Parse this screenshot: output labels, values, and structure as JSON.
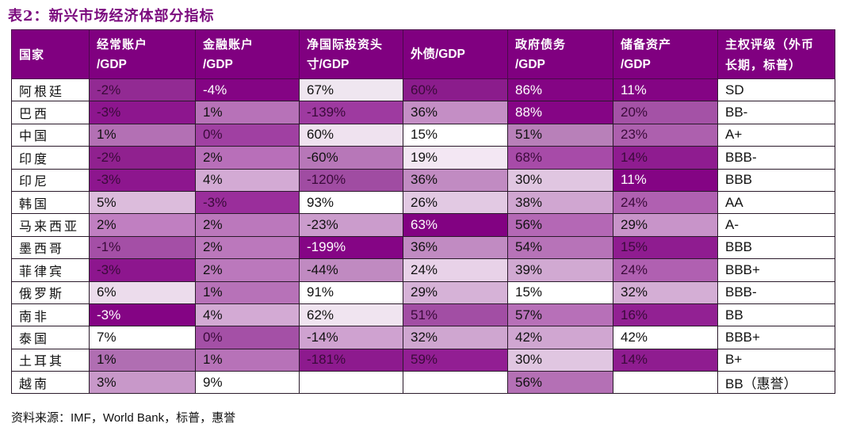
{
  "title": "表2：新兴市场经济体部分指标",
  "table": {
    "columns": [
      {
        "line1": "国家",
        "line2": ""
      },
      {
        "line1": "经常账户",
        "line2": "/GDP"
      },
      {
        "line1": "金融账户",
        "line2": "/GDP"
      },
      {
        "line1": "净国际投资头",
        "line2": "寸/GDP"
      },
      {
        "line1": "外债/GDP",
        "line2": ""
      },
      {
        "line1": "政府债务",
        "line2": "/GDP"
      },
      {
        "line1": "储备资产",
        "line2": "/GDP"
      },
      {
        "line1": "主权评级（外币",
        "line2": "长期，标普）"
      }
    ],
    "rows": [
      {
        "country": "阿根廷",
        "values": [
          "-2%",
          "-4%",
          "67%",
          "60%",
          "86%",
          "11%",
          "SD"
        ],
        "colors": [
          "#922a93",
          "#840484",
          "#efe6f0",
          "#8b1c8c",
          "#840484",
          "#840484",
          "#ffffff"
        ],
        "text": [
          "mid",
          "light",
          "dark",
          "mid",
          "light",
          "light",
          "dark"
        ]
      },
      {
        "country": "巴西",
        "values": [
          "-3%",
          "1%",
          "-139%",
          "36%",
          "88%",
          "20%",
          "BB-"
        ],
        "colors": [
          "#8d168e",
          "#b772b8",
          "#9e3aa0",
          "#c48ec5",
          "#850585",
          "#a452a6",
          "#ffffff"
        ],
        "text": [
          "mid",
          "dark",
          "mid",
          "dark",
          "light",
          "mid",
          "dark"
        ]
      },
      {
        "country": "中国",
        "values": [
          "1%",
          "0%",
          "60%",
          "15%",
          "51%",
          "23%",
          "A+"
        ],
        "colors": [
          "#b370b4",
          "#a040a2",
          "#efe2ef",
          "#ffffff",
          "#b880b9",
          "#ad60ae",
          "#ffffff"
        ],
        "text": [
          "dark",
          "mid",
          "dark",
          "dark",
          "dark",
          "mid",
          "dark"
        ]
      },
      {
        "country": "印度",
        "values": [
          "-2%",
          "2%",
          "-60%",
          "19%",
          "68%",
          "14%",
          "BBB-"
        ],
        "colors": [
          "#90218f",
          "#b86fb9",
          "#b777b8",
          "#f3e7f3",
          "#a74ba8",
          "#8f1c90",
          "#ffffff"
        ],
        "text": [
          "mid",
          "dark",
          "dark",
          "dark",
          "mid",
          "mid",
          "dark"
        ]
      },
      {
        "country": "印尼",
        "values": [
          "-3%",
          "4%",
          "-120%",
          "36%",
          "30%",
          "11%",
          "BBB"
        ],
        "colors": [
          "#8d168e",
          "#d3aad4",
          "#a04ca2",
          "#c18bc2",
          "#e0c6e1",
          "#840484",
          "#ffffff"
        ],
        "text": [
          "mid",
          "dark",
          "mid",
          "dark",
          "dark",
          "light",
          "dark"
        ]
      },
      {
        "country": "韩国",
        "values": [
          "5%",
          "-3%",
          "93%",
          "26%",
          "38%",
          "24%",
          "AA"
        ],
        "colors": [
          "#dcbcdc",
          "#9a2e9b",
          "#ffffff",
          "#e2c9e3",
          "#d0a6d1",
          "#b060b1",
          "#ffffff"
        ],
        "text": [
          "dark",
          "mid",
          "dark",
          "dark",
          "dark",
          "mid",
          "dark"
        ]
      },
      {
        "country": "马来西亚",
        "values": [
          "2%",
          "2%",
          "-23%",
          "63%",
          "56%",
          "29%",
          "A-"
        ],
        "colors": [
          "#c07fc1",
          "#bb78bc",
          "#cb9ccc",
          "#820282",
          "#b468b5",
          "#c894c9",
          "#ffffff"
        ],
        "text": [
          "dark",
          "dark",
          "dark",
          "light",
          "dark",
          "dark",
          "dark"
        ]
      },
      {
        "country": "墨西哥",
        "values": [
          "-1%",
          "2%",
          "-199%",
          "36%",
          "54%",
          "15%",
          "BBB"
        ],
        "colors": [
          "#a44fa6",
          "#bb78bc",
          "#850585",
          "#c18bc2",
          "#b773b8",
          "#8f1c90",
          "#ffffff"
        ],
        "text": [
          "mid",
          "dark",
          "light",
          "dark",
          "dark",
          "mid",
          "dark"
        ]
      },
      {
        "country": "菲律宾",
        "values": [
          "-3%",
          "2%",
          "-44%",
          "24%",
          "39%",
          "24%",
          "BBB+"
        ],
        "colors": [
          "#8d168e",
          "#bb78bc",
          "#c08ac1",
          "#e8d2e8",
          "#d1a9d2",
          "#b060b1",
          "#ffffff"
        ],
        "text": [
          "mid",
          "dark",
          "dark",
          "dark",
          "dark",
          "mid",
          "dark"
        ]
      },
      {
        "country": "俄罗斯",
        "values": [
          "6%",
          "1%",
          "91%",
          "29%",
          "15%",
          "32%",
          "BBB-"
        ],
        "colors": [
          "#ecdcec",
          "#b772b8",
          "#ffffff",
          "#d6b2d7",
          "#ffffff",
          "#d4aed5",
          "#ffffff"
        ],
        "text": [
          "dark",
          "dark",
          "dark",
          "dark",
          "dark",
          "dark",
          "dark"
        ]
      },
      {
        "country": "南非",
        "values": [
          "-3%",
          "4%",
          "62%",
          "51%",
          "57%",
          "16%",
          "BB"
        ],
        "colors": [
          "#840484",
          "#d3aad4",
          "#f0e4f0",
          "#a24ea4",
          "#b770b8",
          "#922193",
          "#ffffff"
        ],
        "text": [
          "light",
          "dark",
          "dark",
          "mid",
          "dark",
          "mid",
          "dark"
        ]
      },
      {
        "country": "泰国",
        "values": [
          "7%",
          "0%",
          "-14%",
          "32%",
          "42%",
          "42%",
          "BBB+"
        ],
        "colors": [
          "#ffffff",
          "#a450a6",
          "#cfa2d0",
          "#cfa6d0",
          "#d0a6d1",
          "#ffffff",
          "#ffffff"
        ],
        "text": [
          "dark",
          "mid",
          "dark",
          "dark",
          "dark",
          "dark",
          "dark"
        ]
      },
      {
        "country": "土耳其",
        "values": [
          "1%",
          "1%",
          "-181%",
          "59%",
          "30%",
          "14%",
          "B+"
        ],
        "colors": [
          "#b06eb2",
          "#b772b8",
          "#8d1a8e",
          "#921e93",
          "#e0c6e1",
          "#8f1c90",
          "#ffffff"
        ],
        "text": [
          "dark",
          "dark",
          "mid",
          "mid",
          "dark",
          "mid",
          "dark"
        ]
      },
      {
        "country": "越南",
        "values": [
          "3%",
          "9%",
          "",
          "",
          "56%",
          "",
          "BB（惠誉）"
        ],
        "colors": [
          "#c898c9",
          "#ffffff",
          "#ffffff",
          "#ffffff",
          "#b470b5",
          "#ffffff",
          "#ffffff"
        ],
        "text": [
          "dark",
          "dark",
          "dark",
          "dark",
          "dark",
          "dark",
          "dark"
        ]
      }
    ]
  },
  "footer": "资料来源：IMF，World Bank，标普，惠誉",
  "colors": {
    "header_bg": "#800080",
    "title": "#7b0a7e"
  }
}
